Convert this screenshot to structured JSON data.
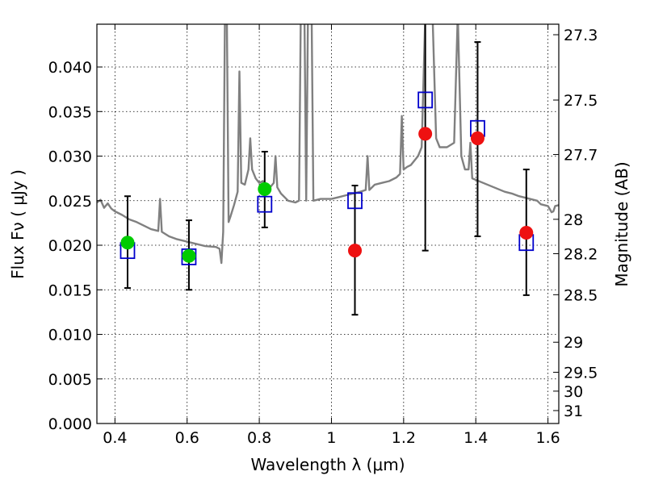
{
  "chart_data": {
    "type": "scatter",
    "xlabel": "Wavelength  λ (μm)",
    "ylabel": "Flux  Fν  ( μJy )",
    "ylabel_right": "Magnitude (AB)",
    "xlim": [
      0.35,
      1.63
    ],
    "ylim": [
      0.0,
      0.0448
    ],
    "grid": true,
    "x_ticks": [
      0.4,
      0.6,
      0.8,
      1.0,
      1.2,
      1.4,
      1.6
    ],
    "x_tick_labels": [
      "0.4",
      "0.6",
      "0.8",
      "1",
      "1.2",
      "1.4",
      "1.6"
    ],
    "y_ticks": [
      0.0,
      0.005,
      0.01,
      0.015,
      0.02,
      0.025,
      0.03,
      0.035,
      0.04
    ],
    "y_tick_labels": [
      "0.000",
      "0.005",
      "0.010",
      "0.015",
      "0.020",
      "0.025",
      "0.030",
      "0.035",
      "0.040"
    ],
    "right_ticks": [
      {
        "label": "27.3",
        "flux": 0.04362
      },
      {
        "label": "27.5",
        "flux": 0.03629
      },
      {
        "label": "27.7",
        "flux": 0.03018
      },
      {
        "label": "28",
        "flux": 0.02291
      },
      {
        "label": "28.2",
        "flux": 0.01905
      },
      {
        "label": "28.5",
        "flux": 0.01445
      },
      {
        "label": "29",
        "flux": 0.00912
      },
      {
        "label": "29.5",
        "flux": 0.00575
      },
      {
        "label": "30",
        "flux": 0.00363
      },
      {
        "label": "31",
        "flux": 0.00145
      }
    ],
    "series": [
      {
        "kind": "model-spectrum",
        "color": "#808080",
        "points": [
          [
            0.35,
            0.0248
          ],
          [
            0.36,
            0.0251
          ],
          [
            0.37,
            0.0242
          ],
          [
            0.38,
            0.0247
          ],
          [
            0.39,
            0.0241
          ],
          [
            0.4,
            0.0238
          ],
          [
            0.42,
            0.0234
          ],
          [
            0.44,
            0.0229
          ],
          [
            0.46,
            0.0226
          ],
          [
            0.48,
            0.0222
          ],
          [
            0.5,
            0.0218
          ],
          [
            0.52,
            0.0216
          ],
          [
            0.525,
            0.0252
          ],
          [
            0.53,
            0.0215
          ],
          [
            0.55,
            0.021
          ],
          [
            0.57,
            0.0207
          ],
          [
            0.6,
            0.0204
          ],
          [
            0.62,
            0.0202
          ],
          [
            0.65,
            0.0199
          ],
          [
            0.68,
            0.0198
          ],
          [
            0.69,
            0.0196
          ],
          [
            0.695,
            0.018
          ],
          [
            0.7,
            0.0215
          ],
          [
            0.705,
            0.046
          ],
          [
            0.71,
            0.046
          ],
          [
            0.715,
            0.0226
          ],
          [
            0.72,
            0.0232
          ],
          [
            0.73,
            0.0245
          ],
          [
            0.74,
            0.026
          ],
          [
            0.745,
            0.0395
          ],
          [
            0.75,
            0.027
          ],
          [
            0.76,
            0.0268
          ],
          [
            0.77,
            0.0285
          ],
          [
            0.775,
            0.032
          ],
          [
            0.78,
            0.0285
          ],
          [
            0.79,
            0.0275
          ],
          [
            0.8,
            0.027
          ],
          [
            0.81,
            0.0272
          ],
          [
            0.82,
            0.0268
          ],
          [
            0.83,
            0.0265
          ],
          [
            0.84,
            0.027
          ],
          [
            0.845,
            0.03
          ],
          [
            0.85,
            0.0265
          ],
          [
            0.86,
            0.0258
          ],
          [
            0.88,
            0.025
          ],
          [
            0.9,
            0.0248
          ],
          [
            0.91,
            0.025
          ],
          [
            0.915,
            0.046
          ],
          [
            0.925,
            0.046
          ],
          [
            0.93,
            0.025
          ],
          [
            0.935,
            0.046
          ],
          [
            0.945,
            0.046
          ],
          [
            0.95,
            0.025
          ],
          [
            0.97,
            0.0252
          ],
          [
            1.0,
            0.0252
          ],
          [
            1.02,
            0.0254
          ],
          [
            1.04,
            0.0256
          ],
          [
            1.06,
            0.0258
          ],
          [
            1.08,
            0.026
          ],
          [
            1.095,
            0.0262
          ],
          [
            1.1,
            0.03
          ],
          [
            1.105,
            0.0262
          ],
          [
            1.12,
            0.0268
          ],
          [
            1.14,
            0.027
          ],
          [
            1.16,
            0.0272
          ],
          [
            1.18,
            0.0276
          ],
          [
            1.19,
            0.028
          ],
          [
            1.195,
            0.0345
          ],
          [
            1.2,
            0.0285
          ],
          [
            1.21,
            0.0288
          ],
          [
            1.22,
            0.029
          ],
          [
            1.24,
            0.03
          ],
          [
            1.25,
            0.031
          ],
          [
            1.26,
            0.046
          ],
          [
            1.28,
            0.046
          ],
          [
            1.29,
            0.032
          ],
          [
            1.3,
            0.031
          ],
          [
            1.32,
            0.031
          ],
          [
            1.34,
            0.0315
          ],
          [
            1.35,
            0.046
          ],
          [
            1.36,
            0.03
          ],
          [
            1.37,
            0.0285
          ],
          [
            1.38,
            0.0285
          ],
          [
            1.385,
            0.0315
          ],
          [
            1.39,
            0.0275
          ],
          [
            1.42,
            0.027
          ],
          [
            1.45,
            0.0265
          ],
          [
            1.48,
            0.026
          ],
          [
            1.5,
            0.0258
          ],
          [
            1.52,
            0.0255
          ],
          [
            1.55,
            0.0252
          ],
          [
            1.57,
            0.025
          ],
          [
            1.58,
            0.0246
          ],
          [
            1.6,
            0.0244
          ],
          [
            1.61,
            0.0237
          ],
          [
            1.615,
            0.0238
          ],
          [
            1.62,
            0.0244
          ],
          [
            1.63,
            0.0245
          ]
        ]
      },
      {
        "kind": "model-photometry",
        "marker": "open-square",
        "color": "#0000cc",
        "points": [
          [
            0.435,
            0.0194
          ],
          [
            0.605,
            0.0187
          ],
          [
            0.815,
            0.0246
          ],
          [
            1.065,
            0.025
          ],
          [
            1.26,
            0.0363
          ],
          [
            1.405,
            0.0331
          ],
          [
            1.54,
            0.0203
          ]
        ]
      },
      {
        "kind": "detections",
        "marker": "filled-circle",
        "color": "#00cc00",
        "points": [
          {
            "x": 0.435,
            "y": 0.0203,
            "err_lo": 0.0152,
            "err_hi": 0.0255
          },
          {
            "x": 0.605,
            "y": 0.0188,
            "err_lo": 0.015,
            "err_hi": 0.0228
          },
          {
            "x": 0.815,
            "y": 0.0263,
            "err_lo": 0.022,
            "err_hi": 0.0305
          }
        ]
      },
      {
        "kind": "non-detections",
        "marker": "filled-circle",
        "color": "#ee1111",
        "points": [
          {
            "x": 1.065,
            "y": 0.0194,
            "err_lo": 0.0122,
            "err_hi": 0.0267
          },
          {
            "x": 1.26,
            "y": 0.0325,
            "err_lo": 0.0194,
            "err_hi": 0.046
          },
          {
            "x": 1.405,
            "y": 0.032,
            "err_lo": 0.021,
            "err_hi": 0.0428
          },
          {
            "x": 1.54,
            "y": 0.0214,
            "err_lo": 0.0144,
            "err_hi": 0.0285
          }
        ]
      }
    ]
  }
}
